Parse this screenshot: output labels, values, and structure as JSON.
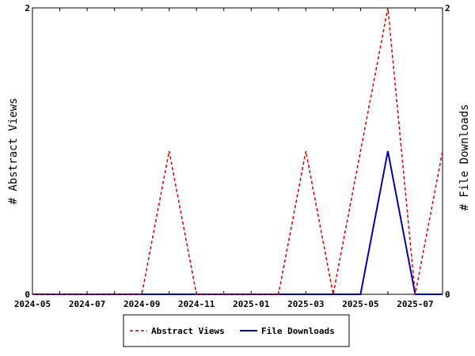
{
  "chart_data": {
    "type": "line",
    "x": [
      "2024-05",
      "2024-06",
      "2024-07",
      "2024-08",
      "2024-09",
      "2024-10",
      "2024-11",
      "2024-12",
      "2025-01",
      "2025-02",
      "2025-03",
      "2025-04",
      "2025-05",
      "2025-06",
      "2025-07",
      "2025-08"
    ],
    "x_tick_labels": [
      "2024-05",
      "2024-07",
      "2024-09",
      "2024-11",
      "2025-01",
      "2025-03",
      "2025-05",
      "2025-07"
    ],
    "series": [
      {
        "name": "Abstract Views",
        "axis": "left",
        "color": "#cc0000",
        "dash": "dashed",
        "values": [
          0,
          0,
          0,
          0,
          0,
          1,
          0,
          0,
          0,
          0,
          1,
          0,
          1,
          2,
          0,
          1
        ]
      },
      {
        "name": "File Downloads",
        "axis": "right",
        "color": "#0000aa",
        "dash": "solid",
        "values": [
          0,
          0,
          0,
          0,
          0,
          0,
          0,
          0,
          0,
          0,
          0,
          0,
          0,
          1,
          0,
          0
        ]
      }
    ],
    "ylabel": "# Abstract Views",
    "y2label": "# File Downloads",
    "ylim": [
      0,
      2
    ],
    "y2lim": [
      0,
      2
    ],
    "y_ticks": [
      "0",
      "2"
    ],
    "y2_ticks": [
      "0",
      "2"
    ],
    "grid": false,
    "legend_position": "bottom"
  }
}
